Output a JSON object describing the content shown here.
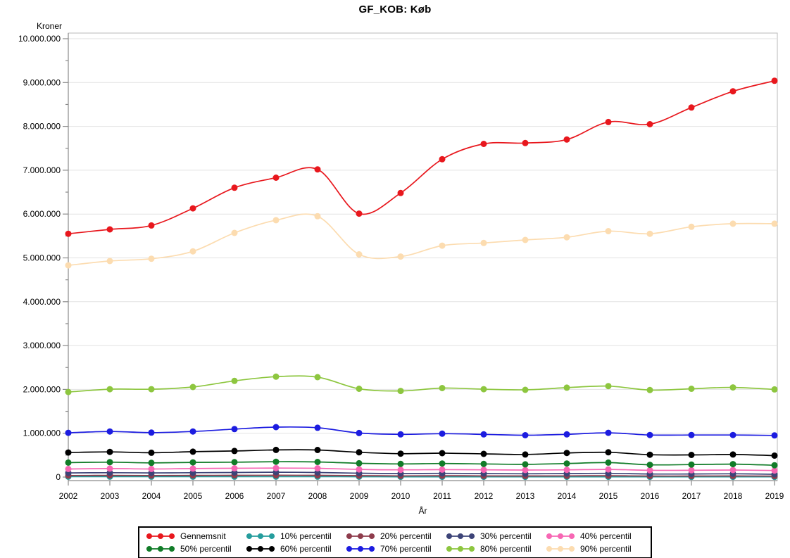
{
  "title": "GF_KOB: Køb",
  "chart_data": {
    "type": "line",
    "title": "GF_KOB: Køb",
    "xlabel": "År",
    "ylabel": "Kroner",
    "x": [
      2002,
      2003,
      2004,
      2005,
      2006,
      2007,
      2008,
      2009,
      2010,
      2011,
      2012,
      2013,
      2014,
      2015,
      2016,
      2017,
      2018,
      2019
    ],
    "ylim": [
      0,
      10000000
    ],
    "ytick_interval": 1000000,
    "ytick_labels": [
      "0",
      "1.000.000",
      "2.000.000",
      "3.000.000",
      "4.000.000",
      "5.000.000",
      "6.000.000",
      "7.000.000",
      "8.000.000",
      "9.000.000",
      "10.000.000"
    ],
    "grid": "horizontal-major",
    "legend_position": "bottom-boxed",
    "marker": "filled-circle",
    "line_style": "smooth",
    "series": [
      {
        "name": "Gennemsnit",
        "color": "#e8171d",
        "values": [
          5550000,
          5650000,
          5740000,
          6130000,
          6600000,
          6830000,
          7020000,
          6010000,
          6480000,
          7250000,
          7600000,
          7620000,
          7700000,
          8100000,
          8050000,
          8430000,
          8800000,
          9040000
        ]
      },
      {
        "name": "10% percentil",
        "color": "#259d9d",
        "values": [
          10000,
          10000,
          10000,
          10000,
          10000,
          10000,
          10000,
          8000,
          6000,
          6000,
          6000,
          5000,
          6000,
          6000,
          5000,
          5000,
          5000,
          5000
        ]
      },
      {
        "name": "20% percentil",
        "color": "#8e3c4c",
        "values": [
          35000,
          38000,
          36000,
          38000,
          40000,
          42000,
          40000,
          32000,
          28000,
          30000,
          28000,
          26000,
          28000,
          30000,
          24000,
          24000,
          26000,
          22000
        ]
      },
      {
        "name": "30% percentil",
        "color": "#3d4478",
        "values": [
          95000,
          100000,
          95000,
          100000,
          105000,
          110000,
          105000,
          88000,
          80000,
          85000,
          80000,
          75000,
          80000,
          85000,
          70000,
          70000,
          75000,
          65000
        ]
      },
      {
        "name": "40% percentil",
        "color": "#f767b4",
        "values": [
          185000,
          195000,
          185000,
          195000,
          200000,
          205000,
          200000,
          175000,
          165000,
          170000,
          165000,
          160000,
          165000,
          175000,
          155000,
          155000,
          160000,
          150000
        ]
      },
      {
        "name": "50% percentil",
        "color": "#117c28",
        "values": [
          330000,
          340000,
          325000,
          335000,
          340000,
          350000,
          345000,
          315000,
          300000,
          310000,
          300000,
          290000,
          310000,
          330000,
          280000,
          285000,
          295000,
          270000
        ]
      },
      {
        "name": "60% percentil",
        "color": "#000000",
        "values": [
          560000,
          575000,
          555000,
          580000,
          595000,
          620000,
          618000,
          565000,
          535000,
          545000,
          530000,
          515000,
          550000,
          565000,
          510000,
          505000,
          515000,
          490000
        ]
      },
      {
        "name": "70% percentil",
        "color": "#1c1ce0",
        "values": [
          1010000,
          1040000,
          1015000,
          1040000,
          1095000,
          1140000,
          1125000,
          1005000,
          975000,
          990000,
          975000,
          955000,
          975000,
          1010000,
          960000,
          960000,
          960000,
          950000
        ]
      },
      {
        "name": "80% percentil",
        "color": "#8dc63f",
        "values": [
          1940000,
          2005000,
          2005000,
          2055000,
          2195000,
          2290000,
          2280000,
          2015000,
          1965000,
          2030000,
          2005000,
          1990000,
          2040000,
          2075000,
          1985000,
          2015000,
          2045000,
          2000000
        ]
      },
      {
        "name": "90% percentil",
        "color": "#fcdcb0",
        "values": [
          4830000,
          4930000,
          4980000,
          5150000,
          5570000,
          5860000,
          5950000,
          5080000,
          5030000,
          5280000,
          5340000,
          5410000,
          5470000,
          5610000,
          5550000,
          5710000,
          5780000,
          5780000
        ]
      }
    ],
    "colors": {
      "gridline": "#e2e2e2",
      "frame": "#b8b8b8",
      "axis": "#8a8a8a",
      "plot_background": "#ffffff"
    }
  }
}
